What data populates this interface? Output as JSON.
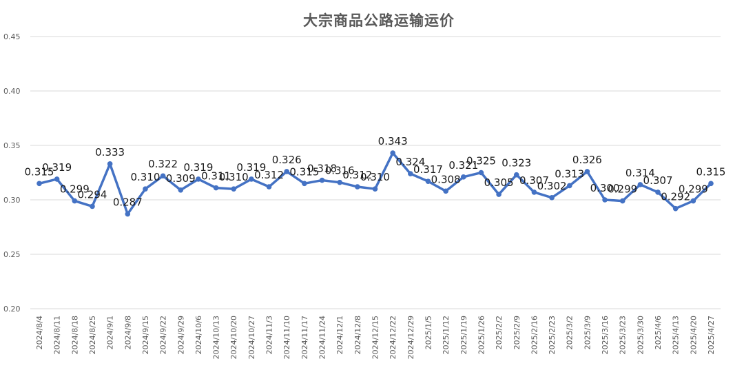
{
  "chart_data": {
    "type": "line",
    "title": "大宗商品公路运输运价",
    "xlabel": "",
    "ylabel": "",
    "ylim": [
      0.2,
      0.45
    ],
    "yticks": [
      "0.20",
      "0.25",
      "0.30",
      "0.35",
      "0.40",
      "0.45"
    ],
    "grid": true,
    "legend": "none",
    "line_color": "#4472c4",
    "categories": [
      "2024/8/4",
      "2024/8/11",
      "2024/8/18",
      "2024/8/25",
      "2024/9/1",
      "2024/9/8",
      "2024/9/15",
      "2024/9/22",
      "2024/9/29",
      "2024/10/6",
      "2024/10/13",
      "2024/10/20",
      "2024/10/27",
      "2024/11/3",
      "2024/11/10",
      "2024/11/17",
      "2024/11/24",
      "2024/12/1",
      "2024/12/8",
      "2024/12/15",
      "2024/12/22",
      "2024/12/29",
      "2025/1/5",
      "2025/1/12",
      "2025/1/19",
      "2025/1/26",
      "2025/2/2",
      "2025/2/9",
      "2025/2/16",
      "2025/2/23",
      "2025/3/2",
      "2025/3/9",
      "2025/3/16",
      "2025/3/23",
      "2025/3/30",
      "2025/4/6",
      "2025/4/13",
      "2025/4/20",
      "2025/4/27"
    ],
    "series": [
      {
        "values": [
          0.315,
          0.319,
          0.299,
          0.294,
          0.333,
          0.287,
          0.31,
          0.322,
          0.309,
          0.319,
          0.311,
          0.31,
          0.319,
          0.312,
          0.326,
          0.315,
          0.318,
          0.316,
          0.312,
          0.31,
          0.343,
          0.324,
          0.317,
          0.308,
          0.321,
          0.325,
          0.305,
          0.323,
          0.307,
          0.302,
          0.313,
          0.326,
          0.3,
          0.299,
          0.314,
          0.307,
          0.292,
          0.299,
          0.315
        ],
        "labels": [
          "0.315",
          "0.319",
          "0.299",
          "0.294",
          "0.333",
          "0.287",
          "0.310",
          "0.322",
          "0.309",
          "0.319",
          "0.311",
          "0.310",
          "0.319",
          "0.312",
          "0.326",
          "0.315",
          "0.318",
          "0.316",
          "0.312",
          "0.310",
          "0.343",
          "0.324",
          "0.317",
          "0.308",
          "0.321",
          "0.325",
          "0.305",
          "0.323",
          "0.307",
          "0.302",
          "0.313",
          "0.326",
          "0.300",
          "0.299",
          "0.314",
          "0.307",
          "0.292",
          "0.299",
          "0.315"
        ]
      }
    ]
  }
}
